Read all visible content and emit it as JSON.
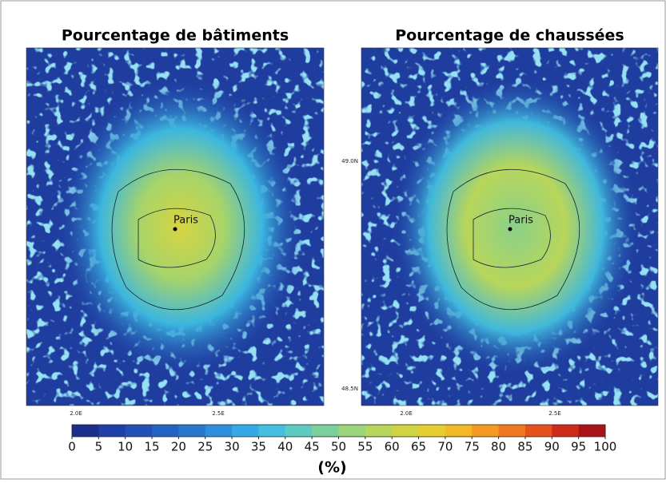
{
  "panels": [
    {
      "title": "Pourcentage de bâtiments",
      "x_ticks": [
        "2.0E",
        "2.5E"
      ],
      "city": "Paris"
    },
    {
      "title": "Pourcentage de chaussées",
      "x_ticks": [
        "2.0E",
        "2.5E"
      ],
      "y_ticks": [
        "49.0N",
        "48.5N"
      ],
      "city": "Paris"
    }
  ],
  "colorbar": {
    "ticks": [
      0,
      5,
      10,
      15,
      20,
      25,
      30,
      35,
      40,
      45,
      50,
      55,
      60,
      65,
      70,
      75,
      80,
      85,
      90,
      95,
      100
    ],
    "label": "(%)",
    "colors": [
      "#1a2f8c",
      "#1f3fa8",
      "#2250b8",
      "#2462c6",
      "#2878d0",
      "#2e90dc",
      "#34a9e6",
      "#44bfe0",
      "#5ecbc0",
      "#7cd09c",
      "#9ad47c",
      "#b6d65e",
      "#d0d444",
      "#e6ce2e",
      "#f2b826",
      "#f49a22",
      "#f07820",
      "#e6521c",
      "#d02a1a",
      "#a8141a"
    ]
  }
}
